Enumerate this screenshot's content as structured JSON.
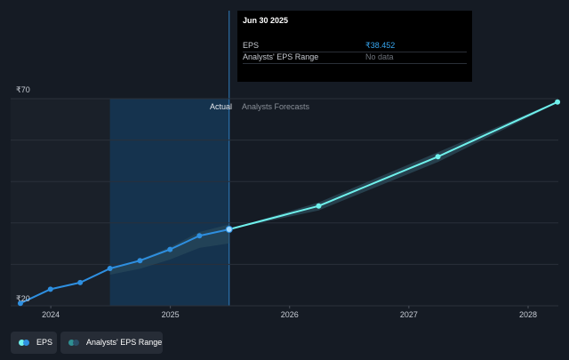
{
  "chart_data": {
    "type": "line",
    "y_unit": "₹",
    "ylim": [
      20,
      70
    ],
    "y_tick_labels": [
      "₹70",
      "₹20"
    ],
    "x_tick_labels": [
      "2024",
      "2025",
      "2026",
      "2027",
      "2028"
    ],
    "divider_label_left": "Actual",
    "divider_label_right": "Analysts Forecasts",
    "series": [
      {
        "name": "EPS",
        "points": [
          {
            "x": "2023-09-30",
            "y": 20.6
          },
          {
            "x": "2023-12-31",
            "y": 24.0
          },
          {
            "x": "2024-03-31",
            "y": 25.6
          },
          {
            "x": "2024-06-30",
            "y": 29.0
          },
          {
            "x": "2024-09-30",
            "y": 30.9
          },
          {
            "x": "2024-12-31",
            "y": 33.6
          },
          {
            "x": "2025-03-31",
            "y": 36.9
          },
          {
            "x": "2025-06-30",
            "y": 38.452
          }
        ]
      },
      {
        "name": "EPS Forecast",
        "points": [
          {
            "x": "2025-06-30",
            "y": 38.452
          },
          {
            "x": "2026-03-31",
            "y": 44.1
          },
          {
            "x": "2027-03-31",
            "y": 56.0
          },
          {
            "x": "2028-03-31",
            "y": 69.2
          }
        ]
      }
    ]
  },
  "tooltip": {
    "date": "Jun 30 2025",
    "rows": [
      {
        "label": "EPS",
        "value": "₹38.452"
      },
      {
        "label": "Analysts' EPS Range",
        "value": "No data"
      }
    ]
  },
  "legend": {
    "items": [
      {
        "label": "EPS"
      },
      {
        "label": "Analysts' EPS Range"
      }
    ]
  },
  "colors": {
    "background": "#151b24",
    "eps_line": "#2e8fe0",
    "forecast_line": "#6ff1ec",
    "range_band": "#2e4f5e",
    "actual_highlight": "#153550",
    "gridline": "#2a303a"
  }
}
